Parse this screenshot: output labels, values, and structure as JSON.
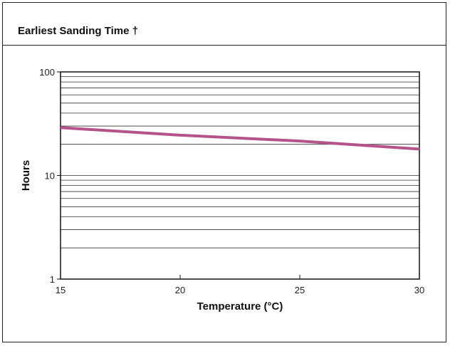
{
  "header": {
    "title": "Earliest Sanding Time †"
  },
  "chart_data": {
    "type": "line",
    "title": "Earliest Sanding Time †",
    "xlabel": "Temperature (°C)",
    "ylabel": "Hours",
    "xlim": [
      15,
      30
    ],
    "ylim": [
      1,
      100
    ],
    "y_scale": "log",
    "x_ticks": [
      "15",
      "20",
      "25",
      "30"
    ],
    "y_ticks": [
      "1",
      "10",
      "100"
    ],
    "grid": "horizontal",
    "series": [
      {
        "x": [
          15,
          20,
          25,
          30
        ],
        "y": [
          29,
          24.5,
          21.5,
          18
        ],
        "color": "#b3558b"
      }
    ]
  }
}
